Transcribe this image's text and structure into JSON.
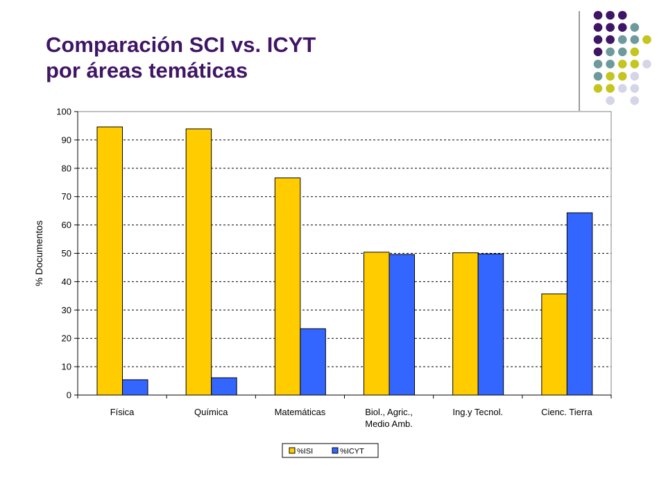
{
  "slide": {
    "title_line1": "Comparación SCI vs. ICYT",
    "title_line2": "por áreas temáticas"
  },
  "colors": {
    "title": "#3f1565",
    "series_isi": "#ffcc00",
    "series_icyt": "#3366ff",
    "dot_purple": "#3f1565",
    "dot_teal": "#6e9a9b",
    "dot_yellow": "#c4c51f",
    "dot_lavender": "#d5d5e8"
  },
  "decoration": {
    "dot_rows": [
      [
        "dot_purple",
        "dot_purple",
        "dot_purple"
      ],
      [
        "dot_purple",
        "dot_purple",
        "dot_purple",
        "dot_teal"
      ],
      [
        "dot_purple",
        "dot_purple",
        "dot_teal",
        "dot_teal",
        "dot_yellow"
      ],
      [
        "dot_purple",
        "dot_teal",
        "dot_teal",
        "dot_yellow"
      ],
      [
        "dot_teal",
        "dot_teal",
        "dot_yellow",
        "dot_yellow",
        "dot_lavender"
      ],
      [
        "dot_teal",
        "dot_yellow",
        "dot_yellow",
        "dot_lavender"
      ],
      [
        "dot_yellow",
        "dot_yellow",
        "dot_lavender",
        "dot_lavender"
      ],
      [
        "dot_lavender",
        "dot_lavender"
      ]
    ]
  },
  "chart_data": {
    "type": "bar",
    "title": "",
    "xlabel": "",
    "ylabel": "% Documentos",
    "ylim": [
      0,
      100
    ],
    "yticks": [
      0,
      10,
      20,
      30,
      40,
      50,
      60,
      70,
      80,
      90,
      100
    ],
    "grid": true,
    "legend_position": "bottom",
    "categories": [
      [
        "Física"
      ],
      [
        "Química"
      ],
      [
        "Matemáticas"
      ],
      [
        "Biol., Agric.,",
        "Medio Amb."
      ],
      [
        "Ing.y Tecnol."
      ],
      [
        "Cienc. Tierra"
      ]
    ],
    "series": [
      {
        "name": "%ISI",
        "color": "#ffcc00",
        "values": [
          94.6,
          93.9,
          76.6,
          50.4,
          50.2,
          35.7
        ]
      },
      {
        "name": "%ICYT",
        "color": "#3366ff",
        "values": [
          5.4,
          6.1,
          23.4,
          49.6,
          49.8,
          64.3
        ]
      }
    ]
  }
}
